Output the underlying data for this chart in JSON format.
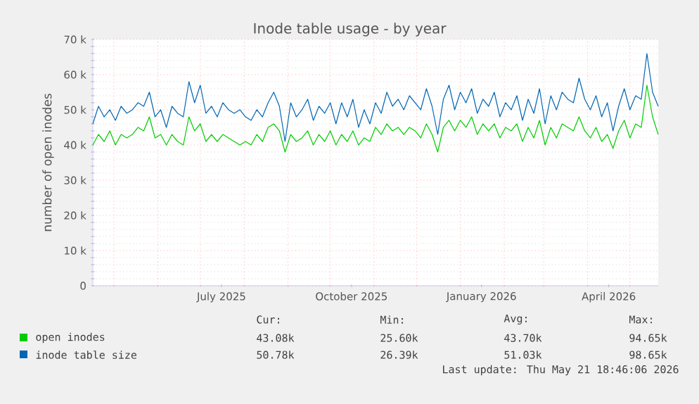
{
  "chart_data": {
    "type": "line",
    "title": "Inode table usage - by year",
    "ylabel": "number of open inodes",
    "x": [
      "2025-04-16",
      "2025-04-20",
      "2025-04-24",
      "2025-04-28",
      "2025-05-02",
      "2025-05-06",
      "2025-05-10",
      "2025-05-14",
      "2025-05-18",
      "2025-05-22",
      "2025-05-26",
      "2025-05-30",
      "2025-06-03",
      "2025-06-07",
      "2025-06-11",
      "2025-06-15",
      "2025-06-19",
      "2025-06-23",
      "2025-06-27",
      "2025-07-01",
      "2025-07-05",
      "2025-07-09",
      "2025-07-13",
      "2025-07-17",
      "2025-07-21",
      "2025-07-25",
      "2025-07-29",
      "2025-08-02",
      "2025-08-06",
      "2025-08-10",
      "2025-08-14",
      "2025-08-18",
      "2025-08-22",
      "2025-08-26",
      "2025-08-30",
      "2025-09-03",
      "2025-09-07",
      "2025-09-11",
      "2025-09-15",
      "2025-09-19",
      "2025-09-23",
      "2025-09-27",
      "2025-10-01",
      "2025-10-05",
      "2025-10-09",
      "2025-10-13",
      "2025-10-17",
      "2025-10-21",
      "2025-10-25",
      "2025-10-29",
      "2025-11-02",
      "2025-11-06",
      "2025-11-10",
      "2025-11-14",
      "2025-11-18",
      "2025-11-22",
      "2025-11-26",
      "2025-11-30",
      "2025-12-04",
      "2025-12-08",
      "2025-12-12",
      "2025-12-16",
      "2025-12-20",
      "2025-12-24",
      "2025-12-28",
      "2026-01-01",
      "2026-01-05",
      "2026-01-09",
      "2026-01-13",
      "2026-01-17",
      "2026-01-21",
      "2026-01-25",
      "2026-01-29",
      "2026-02-02",
      "2026-02-06",
      "2026-02-10",
      "2026-02-14",
      "2026-02-18",
      "2026-02-22",
      "2026-02-26",
      "2026-03-02",
      "2026-03-06",
      "2026-03-10",
      "2026-03-14",
      "2026-03-18",
      "2026-03-22",
      "2026-03-26",
      "2026-03-30",
      "2026-04-03",
      "2026-04-07",
      "2026-04-11",
      "2026-04-15",
      "2026-04-19",
      "2026-04-23",
      "2026-04-27",
      "2026-05-01",
      "2026-05-05",
      "2026-05-09",
      "2026-05-13",
      "2026-05-17",
      "2026-05-21"
    ],
    "series": [
      {
        "name": "open inodes",
        "color": "#00cc00",
        "values": [
          40000,
          43000,
          41000,
          44000,
          40000,
          43000,
          42000,
          43000,
          45000,
          44000,
          48000,
          42000,
          43000,
          40000,
          43000,
          41000,
          40000,
          48000,
          44000,
          46000,
          41000,
          43000,
          41000,
          43000,
          42000,
          41000,
          40000,
          41000,
          40000,
          43000,
          41000,
          45000,
          46000,
          44000,
          38000,
          43000,
          41000,
          42000,
          44000,
          40000,
          43000,
          41000,
          44000,
          40000,
          43000,
          41000,
          44000,
          40000,
          42000,
          41000,
          45000,
          43000,
          46000,
          44000,
          45000,
          43000,
          45000,
          44000,
          42000,
          46000,
          43000,
          38000,
          45000,
          47000,
          44000,
          47000,
          45000,
          48000,
          43000,
          46000,
          44000,
          46000,
          42000,
          45000,
          44000,
          46000,
          41000,
          45000,
          42000,
          47000,
          40000,
          45000,
          42000,
          46000,
          45000,
          44000,
          48000,
          44000,
          42000,
          45000,
          41000,
          43000,
          39000,
          44000,
          47000,
          42000,
          46000,
          45000,
          57000,
          48000,
          43000
        ]
      },
      {
        "name": "inode table size",
        "color": "#0066b3",
        "values": [
          46000,
          51000,
          48000,
          50000,
          47000,
          51000,
          49000,
          50000,
          52000,
          51000,
          55000,
          48000,
          50000,
          45000,
          51000,
          49000,
          48000,
          58000,
          52000,
          57000,
          49000,
          51000,
          48000,
          52000,
          50000,
          49000,
          50000,
          48000,
          47000,
          50000,
          48000,
          52000,
          55000,
          51000,
          41000,
          52000,
          48000,
          50000,
          53000,
          47000,
          51000,
          49000,
          52000,
          46000,
          52000,
          48000,
          53000,
          45000,
          50000,
          46000,
          52000,
          49000,
          55000,
          51000,
          53000,
          50000,
          54000,
          52000,
          50000,
          56000,
          51000,
          43000,
          53000,
          57000,
          50000,
          55000,
          52000,
          56000,
          49000,
          53000,
          51000,
          55000,
          48000,
          52000,
          50000,
          54000,
          47000,
          53000,
          49000,
          56000,
          46000,
          54000,
          50000,
          55000,
          53000,
          52000,
          59000,
          53000,
          50000,
          54000,
          48000,
          52000,
          44000,
          51000,
          56000,
          50000,
          54000,
          53000,
          66000,
          55000,
          51000
        ]
      }
    ],
    "xlim": [
      "2025-04-16",
      "2026-05-21"
    ],
    "xticks": [
      {
        "value": "2025-05-01",
        "label": null
      },
      {
        "value": "2025-06-01",
        "label": null
      },
      {
        "value": "2025-07-01",
        "label": null
      },
      {
        "value": "2025-07-16",
        "label": "July 2025"
      },
      {
        "value": "2025-08-01",
        "label": null
      },
      {
        "value": "2025-09-01",
        "label": null
      },
      {
        "value": "2025-10-01",
        "label": null
      },
      {
        "value": "2025-10-16",
        "label": "October 2025"
      },
      {
        "value": "2025-11-01",
        "label": null
      },
      {
        "value": "2025-12-01",
        "label": null
      },
      {
        "value": "2026-01-01",
        "label": null
      },
      {
        "value": "2026-01-16",
        "label": "January 2026"
      },
      {
        "value": "2026-02-01",
        "label": null
      },
      {
        "value": "2026-03-01",
        "label": null
      },
      {
        "value": "2026-04-01",
        "label": null
      },
      {
        "value": "2026-04-16",
        "label": "April 2026"
      },
      {
        "value": "2026-05-01",
        "label": null
      }
    ],
    "ylim": [
      0,
      70000
    ],
    "yticks": [
      0,
      {
        "value": 10000,
        "label": "10 k"
      },
      {
        "value": 20000,
        "label": "20 k"
      },
      {
        "value": 30000,
        "label": "30 k"
      },
      {
        "value": 40000,
        "label": "40 k"
      },
      {
        "value": 50000,
        "label": "50 k"
      },
      {
        "value": 60000,
        "label": "60 k"
      },
      {
        "value": 70000,
        "label": "70 k"
      }
    ],
    "grid": true,
    "legend": "bottom",
    "annotations": [
      "Cur:",
      "Min:",
      "Avg:",
      "Max:",
      "43.08k",
      "25.60k",
      "43.70k",
      "94.65k",
      "50.78k",
      "26.39k",
      "51.03k",
      "98.65k",
      "Last update: Thu May 21 18:46:06 2026"
    ]
  }
}
